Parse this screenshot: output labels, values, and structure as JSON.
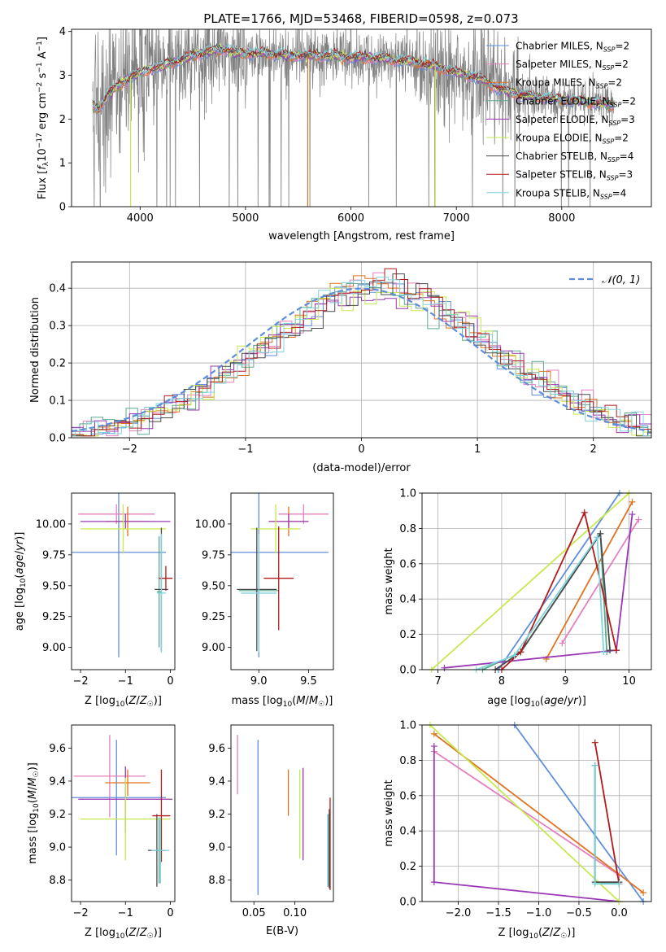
{
  "figure_title": "PLATE=1766, MJD=53468, FIBERID=0598, z=0.073",
  "colors": {
    "Chabrier MILES": "#5f8edb",
    "Salpeter MILES": "#e57fbf",
    "Kroupa MILES": "#e0721f",
    "Chabrier ELODIE": "#5aaa90",
    "Salpeter ELODIE": "#9b38b5",
    "Kroupa ELODIE": "#c6e94d",
    "Chabrier STELIB": "#4a4a4a",
    "Salpeter STELIB": "#b01c1c",
    "Kroupa STELIB": "#7fd4dc",
    "data": "#808080",
    "normal": "#5f8edb",
    "grid": "#b0b0b0"
  },
  "chart_data": [
    {
      "id": "spectrum",
      "type": "line",
      "title": "PLATE=1766, MJD=53468, FIBERID=0598, z=0.073",
      "xlabel": "wavelength [Angstrom, rest frame]",
      "ylabel": "Flux [f_λ 10^-17 erg cm^-2 s^-1 A^-1]",
      "xlim": [
        3350,
        8850
      ],
      "ylim": [
        0,
        4.05
      ],
      "xticks": [
        4000,
        5000,
        6000,
        7000,
        8000
      ],
      "yticks": [
        0,
        1,
        2,
        3,
        4
      ],
      "grid": false,
      "legend_position": "top-right",
      "data_series": {
        "name": "data",
        "x_range": [
          3550,
          8500
        ],
        "note": "noisy observed flux"
      },
      "model_continuum": {
        "x": [
          3550,
          3600,
          3700,
          3800,
          3900,
          4000,
          4100,
          4200,
          4300,
          4400,
          4500,
          4600,
          4700,
          4800,
          4900,
          5000,
          5200,
          5400,
          5600,
          5800,
          6000,
          6200,
          6400,
          6600,
          6800,
          7000,
          7200,
          7400,
          7600,
          7800,
          8000,
          8200,
          8400,
          8500
        ],
        "y": [
          2.3,
          2.2,
          2.6,
          2.75,
          2.95,
          3.05,
          3.15,
          3.2,
          3.3,
          3.35,
          3.45,
          3.5,
          3.55,
          3.6,
          3.5,
          3.5,
          3.5,
          3.45,
          3.45,
          3.45,
          3.4,
          3.4,
          3.35,
          3.3,
          3.2,
          3.05,
          2.95,
          2.7,
          2.55,
          2.5,
          2.45,
          2.4,
          2.35,
          2.3
        ]
      },
      "legend": [
        {
          "model": "Chabrier MILES",
          "n": "2"
        },
        {
          "model": "Salpeter MILES",
          "n": "2"
        },
        {
          "model": "Kroupa MILES",
          "n": "2"
        },
        {
          "model": "Chabrier ELODIE",
          "n": "2"
        },
        {
          "model": "Salpeter ELODIE",
          "n": "3"
        },
        {
          "model": "Kroupa ELODIE",
          "n": "2"
        },
        {
          "model": "Chabrier STELIB",
          "n": "4"
        },
        {
          "model": "Salpeter STELIB",
          "n": "3"
        },
        {
          "model": "Kroupa STELIB",
          "n": "4"
        }
      ],
      "legend_n_label": "N",
      "legend_n_sub": "SSP"
    },
    {
      "id": "residuals",
      "type": "line",
      "xlabel": "(data-model)/error",
      "ylabel": "Normed distribution",
      "xlim": [
        -2.5,
        2.5
      ],
      "ylim": [
        0,
        0.47
      ],
      "xticks": [
        -2,
        -1,
        0,
        1,
        2
      ],
      "yticks": [
        0.0,
        0.1,
        0.2,
        0.3,
        0.4
      ],
      "grid": true,
      "legend_position": "top-right",
      "legend_label": "𝒩(0, 1)",
      "bin_width": 0.1,
      "note": "step histograms, one per model, scattered around the normal curve"
    },
    {
      "id": "age_vs_Z",
      "type": "scatter",
      "xlabel": "Z [log10(Z/Z☉)]",
      "ylabel": "age  [log10(age/yr)]",
      "xlim": [
        -2.2,
        0.1
      ],
      "ylim": [
        8.82,
        10.25
      ],
      "xticks": [
        -2,
        -1,
        0
      ],
      "yticks": [
        9.0,
        9.25,
        9.5,
        9.75,
        10.0
      ],
      "points": [
        {
          "model": "Chabrier MILES",
          "x": -1.15,
          "y": 9.77,
          "xerr": 1.05,
          "yerr": 0.85
        },
        {
          "model": "Salpeter MILES",
          "x": -1.2,
          "y": 10.08,
          "xerr": 0.85,
          "yerr": 0.08
        },
        {
          "model": "Kroupa MILES",
          "x": -0.95,
          "y": 10.02,
          "xerr": 0.5,
          "yerr": 0.12
        },
        {
          "model": "Chabrier ELODIE",
          "x": -0.25,
          "y": 9.45,
          "xerr": 0.05,
          "yerr": 0.45
        },
        {
          "model": "Salpeter ELODIE",
          "x": -1.0,
          "y": 10.02,
          "xerr": 1.0,
          "yerr": 0.06
        },
        {
          "model": "Kroupa ELODIE",
          "x": -1.05,
          "y": 9.96,
          "xerr": 0.95,
          "yerr": 0.2
        },
        {
          "model": "Chabrier STELIB",
          "x": -0.2,
          "y": 9.47,
          "xerr": 0.15,
          "yerr": 0.5
        },
        {
          "model": "Salpeter STELIB",
          "x": -0.1,
          "y": 9.56,
          "xerr": 0.15,
          "yerr": 0.1
        },
        {
          "model": "Kroupa STELIB",
          "x": -0.2,
          "y": 9.44,
          "xerr": 0.1,
          "yerr": 0.48
        }
      ]
    },
    {
      "id": "age_vs_mass",
      "type": "scatter",
      "xlabel": "mass [log10(M/M☉)]",
      "ylabel": "",
      "xlim": [
        8.72,
        9.75
      ],
      "ylim": [
        8.82,
        10.25
      ],
      "xticks": [
        9.0,
        9.5
      ],
      "yticks": [
        9.0,
        9.25,
        9.5,
        9.75,
        10.0
      ],
      "points": [
        {
          "model": "Chabrier MILES",
          "x": 9.0,
          "y": 9.77,
          "xerr": 0.7,
          "yerr": 0.85
        },
        {
          "model": "Salpeter MILES",
          "x": 9.45,
          "y": 10.08,
          "xerr": 0.25,
          "yerr": 0.08
        },
        {
          "model": "Kroupa MILES",
          "x": 9.3,
          "y": 10.02,
          "xerr": 0.2,
          "yerr": 0.12
        },
        {
          "model": "Chabrier ELODIE",
          "x": 9.0,
          "y": 9.46,
          "xerr": 0.2,
          "yerr": 0.45
        },
        {
          "model": "Salpeter ELODIE",
          "x": 9.3,
          "y": 10.02,
          "xerr": 0.2,
          "yerr": 0.06
        },
        {
          "model": "Kroupa ELODIE",
          "x": 9.17,
          "y": 9.96,
          "xerr": 0.25,
          "yerr": 0.2
        },
        {
          "model": "Chabrier STELIB",
          "x": 8.98,
          "y": 9.47,
          "xerr": 0.2,
          "yerr": 0.5
        },
        {
          "model": "Salpeter STELIB",
          "x": 9.2,
          "y": 9.56,
          "xerr": 0.15,
          "yerr": 0.42
        },
        {
          "model": "Kroupa STELIB",
          "x": 9.0,
          "y": 9.44,
          "xerr": 0.18,
          "yerr": 0.48
        }
      ]
    },
    {
      "id": "weight_vs_age",
      "type": "line",
      "xlabel": "age  [log10(age/yr)]",
      "ylabel": "mass weight",
      "xlim": [
        6.75,
        10.35
      ],
      "ylim": [
        0,
        1.0
      ],
      "xticks": [
        7,
        8,
        9,
        10
      ],
      "yticks": [
        0.0,
        0.2,
        0.4,
        0.6,
        0.8,
        1.0
      ],
      "grid": true,
      "series": [
        {
          "model": "Chabrier MILES",
          "x": [
            7.95,
            9.85
          ],
          "y": [
            0.0,
            1.0
          ]
        },
        {
          "model": "Salpeter MILES",
          "x": [
            8.95,
            10.15
          ],
          "y": [
            0.15,
            0.85
          ]
        },
        {
          "model": "Kroupa MILES",
          "x": [
            8.7,
            10.05
          ],
          "y": [
            0.06,
            0.95
          ]
        },
        {
          "model": "Chabrier ELODIE",
          "x": [
            7.7,
            8.3,
            9.55,
            9.65
          ],
          "y": [
            0.0,
            0.1,
            0.77,
            0.1
          ]
        },
        {
          "model": "Salpeter ELODIE",
          "x": [
            7.1,
            9.8,
            10.05,
            9.8
          ],
          "y": [
            0.01,
            0.11,
            0.88,
            0.11
          ]
        },
        {
          "model": "Kroupa ELODIE",
          "x": [
            6.9,
            10.0
          ],
          "y": [
            0.0,
            1.0
          ]
        },
        {
          "model": "Chabrier STELIB",
          "x": [
            7.9,
            8.3,
            9.55,
            9.7
          ],
          "y": [
            0.0,
            0.1,
            0.77,
            0.11
          ]
        },
        {
          "model": "Salpeter STELIB",
          "x": [
            8.0,
            8.3,
            9.3,
            9.8
          ],
          "y": [
            0.0,
            0.1,
            0.89,
            0.11
          ]
        },
        {
          "model": "Kroupa STELIB",
          "x": [
            7.6,
            8.2,
            9.5,
            9.6
          ],
          "y": [
            0.0,
            0.08,
            0.75,
            0.1
          ]
        }
      ]
    },
    {
      "id": "mass_vs_Z",
      "type": "scatter",
      "xlabel": "Z [log10(Z/Z☉)]",
      "ylabel": "mass [log10(M/M☉)]",
      "xlim": [
        -2.2,
        0.1
      ],
      "ylim": [
        8.67,
        9.74
      ],
      "xticks": [
        -2,
        -1,
        0
      ],
      "yticks": [
        8.8,
        9.0,
        9.2,
        9.4,
        9.6
      ],
      "points": [
        {
          "model": "Chabrier MILES",
          "x": -1.2,
          "y": 9.3,
          "xerr": 1.1,
          "yerr": 0.35
        },
        {
          "model": "Salpeter MILES",
          "x": -1.35,
          "y": 9.43,
          "xerr": 0.8,
          "yerr": 0.25
        },
        {
          "model": "Kroupa MILES",
          "x": -0.95,
          "y": 9.39,
          "xerr": 0.5,
          "yerr": 0.08
        },
        {
          "model": "Chabrier ELODIE",
          "x": -0.25,
          "y": 8.98,
          "xerr": 0.1,
          "yerr": 0.2
        },
        {
          "model": "Salpeter ELODIE",
          "x": -1.0,
          "y": 9.29,
          "xerr": 1.05,
          "yerr": 0.2
        },
        {
          "model": "Kroupa ELODIE",
          "x": -1.0,
          "y": 9.17,
          "xerr": 1.0,
          "yerr": 0.25
        },
        {
          "model": "Chabrier STELIB",
          "x": -0.3,
          "y": 8.98,
          "xerr": 0.2,
          "yerr": 0.22
        },
        {
          "model": "Salpeter STELIB",
          "x": -0.2,
          "y": 9.19,
          "xerr": 0.2,
          "yerr": 0.28
        },
        {
          "model": "Kroupa STELIB",
          "x": -0.22,
          "y": 8.98,
          "xerr": 0.2,
          "yerr": 0.2
        }
      ]
    },
    {
      "id": "mass_vs_EBV",
      "type": "scatter",
      "xlabel": "E(B-V)",
      "ylabel": "",
      "xlim": [
        0.022,
        0.147
      ],
      "ylim": [
        8.67,
        9.74
      ],
      "xticks": [
        0.05,
        0.1
      ],
      "yticks": [
        8.8,
        9.0,
        9.2,
        9.4,
        9.6
      ],
      "points": [
        {
          "model": "Chabrier MILES",
          "x": 0.055,
          "y": 9.18,
          "yerr": 0.47
        },
        {
          "model": "Salpeter MILES",
          "x": 0.03,
          "y": 9.5,
          "yerr": 0.18
        },
        {
          "model": "Kroupa MILES",
          "x": 0.092,
          "y": 9.33,
          "yerr": 0.14
        },
        {
          "model": "Chabrier ELODIE",
          "x": 0.141,
          "y": 8.98,
          "yerr": 0.22
        },
        {
          "model": "Salpeter ELODIE",
          "x": 0.11,
          "y": 9.2,
          "yerr": 0.28
        },
        {
          "model": "Kroupa ELODIE",
          "x": 0.106,
          "y": 9.2,
          "yerr": 0.27
        },
        {
          "model": "Chabrier STELIB",
          "x": 0.142,
          "y": 8.99,
          "yerr": 0.24
        },
        {
          "model": "Salpeter STELIB",
          "x": 0.143,
          "y": 9.02,
          "yerr": 0.28
        },
        {
          "model": "Kroupa STELIB",
          "x": 0.14,
          "y": 8.98,
          "yerr": 0.22
        }
      ]
    },
    {
      "id": "weight_vs_Z",
      "type": "line",
      "xlabel": "Z [log10(Z/Z☉)]",
      "ylabel": "mass weight",
      "xlim": [
        -2.45,
        0.4
      ],
      "ylim": [
        0,
        1.0
      ],
      "xticks": [
        -2.0,
        -1.5,
        -1.0,
        -0.5,
        0.0
      ],
      "yticks": [
        0.0,
        0.2,
        0.4,
        0.6,
        0.8,
        1.0
      ],
      "grid": true,
      "series": [
        {
          "model": "Chabrier MILES",
          "x": [
            -1.3,
            0.3
          ],
          "y": [
            1.0,
            0.0
          ]
        },
        {
          "model": "Salpeter MILES",
          "x": [
            -2.3,
            0.0
          ],
          "y": [
            0.85,
            0.15
          ]
        },
        {
          "model": "Kroupa MILES",
          "x": [
            -2.3,
            0.3
          ],
          "y": [
            0.95,
            0.05
          ]
        },
        {
          "model": "Chabrier ELODIE",
          "x": [
            -0.3,
            -0.3,
            0.0
          ],
          "y": [
            0.77,
            0.11,
            0.1
          ]
        },
        {
          "model": "Salpeter ELODIE",
          "x": [
            -2.3,
            -2.3,
            0.0
          ],
          "y": [
            0.88,
            0.11,
            0.0
          ]
        },
        {
          "model": "Kroupa ELODIE",
          "x": [
            -2.35,
            0.0
          ],
          "y": [
            1.0,
            0.0
          ]
        },
        {
          "model": "Chabrier STELIB",
          "x": [
            -0.3,
            -0.3,
            0.0
          ],
          "y": [
            0.77,
            0.11,
            0.11
          ]
        },
        {
          "model": "Salpeter STELIB",
          "x": [
            -0.3,
            0.0
          ],
          "y": [
            0.9,
            0.1
          ]
        },
        {
          "model": "Kroupa STELIB",
          "x": [
            -0.3,
            -0.3,
            0.0
          ],
          "y": [
            0.77,
            0.1,
            0.1
          ]
        }
      ]
    }
  ]
}
